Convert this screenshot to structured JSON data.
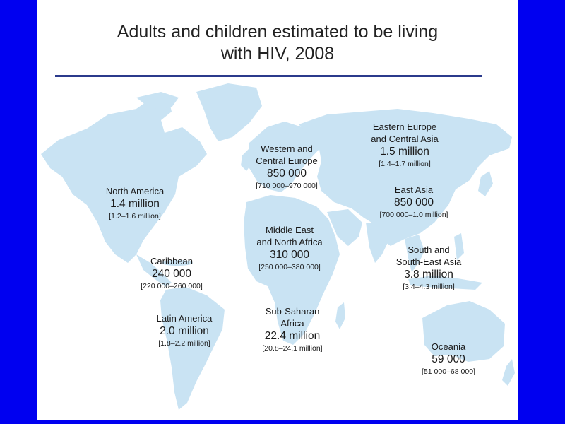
{
  "title": {
    "line1": "Adults and children estimated to be living",
    "line2": "with HIV, 2008"
  },
  "colors": {
    "background": "#0000f0",
    "slide": "#ffffff",
    "land": "#c9e3f3",
    "rule": "#2b3a8c"
  },
  "regions": [
    {
      "id": "north-america",
      "name1": "North America",
      "name2": "",
      "value": "1.4 million",
      "range": "[1.2–1.6 million]"
    },
    {
      "id": "caribbean",
      "name1": "Caribbean",
      "name2": "",
      "value": "240 000",
      "range": "[220 000–260 000]"
    },
    {
      "id": "latin-america",
      "name1": "Latin America",
      "name2": "",
      "value": "2.0 million",
      "range": "[1.8–2.2 million]"
    },
    {
      "id": "western-central-europe",
      "name1": "Western and",
      "name2": "Central Europe",
      "value": "850 000",
      "range": "[710 000–970 000]"
    },
    {
      "id": "middle-east-north-africa",
      "name1": "Middle East",
      "name2": "and North Africa",
      "value": "310 000",
      "range": "[250 000–380 000]"
    },
    {
      "id": "sub-saharan-africa",
      "name1": "Sub-Saharan",
      "name2": "Africa",
      "value": "22.4 million",
      "range": "[20.8–24.1 million]"
    },
    {
      "id": "eastern-europe-central-asia",
      "name1": "Eastern Europe",
      "name2": "and Central Asia",
      "value": "1.5 million",
      "range": "[1.4–1.7 million]"
    },
    {
      "id": "east-asia",
      "name1": "East Asia",
      "name2": "",
      "value": "850 000",
      "range": "[700 000–1.0 million]"
    },
    {
      "id": "south-southeast-asia",
      "name1": "South and",
      "name2": "South-East Asia",
      "value": "3.8 million",
      "range": "[3.4–4.3 million]"
    },
    {
      "id": "oceania",
      "name1": "Oceania",
      "name2": "",
      "value": "59 000",
      "range": "[51 000–68 000]"
    }
  ]
}
